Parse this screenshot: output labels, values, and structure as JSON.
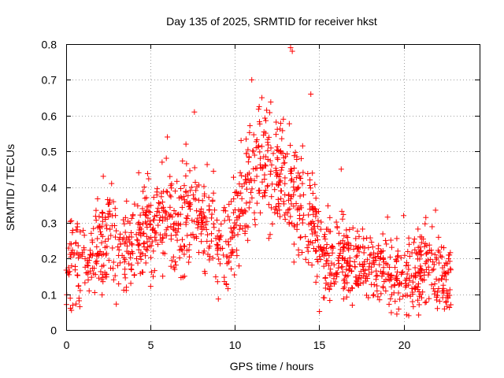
{
  "chart_data": {
    "type": "scatter",
    "title": "Day 135 of 2025, SRMTID for receiver hkst",
    "xlabel": "GPS time / hours",
    "ylabel": "SRMTID / TECUs",
    "xlim": [
      0,
      24.5
    ],
    "ylim": [
      0,
      0.8
    ],
    "xticks": [
      0,
      5,
      10,
      15,
      20
    ],
    "yticks": [
      0,
      0.1,
      0.2,
      0.3,
      0.4,
      0.5,
      0.6,
      0.7,
      0.8
    ],
    "xtick_labels": [
      "0",
      "5",
      "10",
      "15",
      "20"
    ],
    "ytick_labels": [
      "0",
      "0.1",
      "0.2",
      "0.3",
      "0.4",
      "0.5",
      "0.6",
      "0.7",
      "0.8"
    ],
    "grid": true,
    "marker": "+",
    "color": "#ff0000",
    "series": [
      {
        "name": "SRMTID",
        "trend": {
          "x": [
            0,
            0.5,
            1,
            1.5,
            2,
            2.5,
            3,
            3.5,
            4,
            4.5,
            5,
            5.5,
            6,
            6.5,
            7,
            7.5,
            8,
            8.5,
            9,
            9.5,
            10,
            10.5,
            11,
            11.5,
            12,
            12.5,
            13,
            13.5,
            14,
            14.5,
            15,
            15.5,
            16,
            16.5,
            17,
            17.5,
            18,
            18.5,
            19,
            19.5,
            20,
            20.5,
            21,
            21.5,
            22,
            22.5,
            22.8
          ],
          "y": [
            0.17,
            0.2,
            0.22,
            0.2,
            0.22,
            0.25,
            0.24,
            0.22,
            0.24,
            0.26,
            0.28,
            0.3,
            0.32,
            0.3,
            0.32,
            0.35,
            0.3,
            0.28,
            0.25,
            0.24,
            0.3,
            0.38,
            0.45,
            0.48,
            0.46,
            0.45,
            0.42,
            0.38,
            0.35,
            0.3,
            0.22,
            0.2,
            0.19,
            0.21,
            0.2,
            0.18,
            0.17,
            0.17,
            0.18,
            0.16,
            0.15,
            0.15,
            0.17,
            0.18,
            0.17,
            0.14,
            0.15
          ]
        },
        "spread": 0.07,
        "peaks": [
          {
            "x": 2.2,
            "y": 0.43
          },
          {
            "x": 4.3,
            "y": 0.44
          },
          {
            "x": 6.0,
            "y": 0.54
          },
          {
            "x": 7.1,
            "y": 0.52
          },
          {
            "x": 7.6,
            "y": 0.61
          },
          {
            "x": 11.0,
            "y": 0.7
          },
          {
            "x": 11.6,
            "y": 0.65
          },
          {
            "x": 13.3,
            "y": 0.79
          },
          {
            "x": 13.4,
            "y": 0.78
          },
          {
            "x": 14.5,
            "y": 0.66
          },
          {
            "x": 16.3,
            "y": 0.45
          },
          {
            "x": 20.0,
            "y": 0.32
          },
          {
            "x": 20.3,
            "y": 0.04
          },
          {
            "x": 22.0,
            "y": 0.06
          }
        ],
        "point_count": 1400,
        "seed": 135
      }
    ]
  }
}
